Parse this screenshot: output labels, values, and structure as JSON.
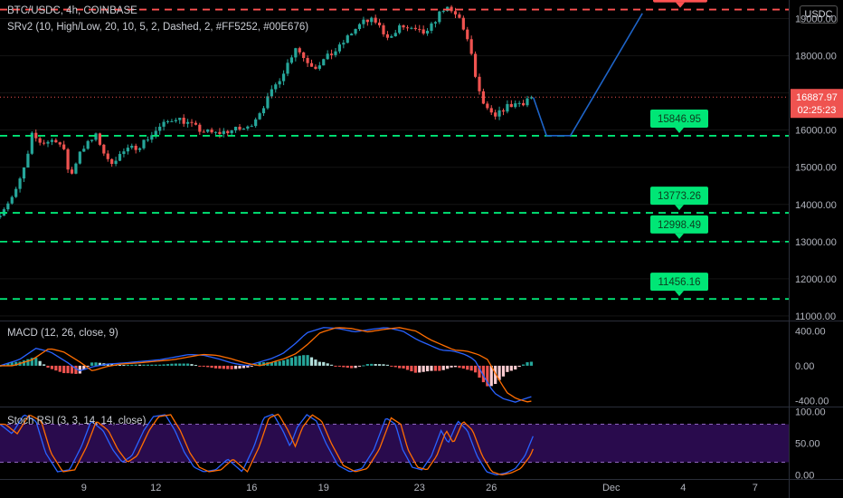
{
  "header": {
    "symbol_line": "BTC/USDC, 4h, COINBASE",
    "indicator_line": "SRv2 (10, High/Low, 20, 10, 5, 2, Dashed, 2, #FF5252, #00E676)",
    "unit_button": "USDC"
  },
  "colors": {
    "up": "#26a69a",
    "down": "#ef5350",
    "support": "#00e676",
    "resistance": "#ff5252",
    "macd": "#2962ff",
    "signal": "#ff6d00",
    "stoch_k": "#2962ff",
    "stoch_d": "#ff6d00",
    "rsi_band": "#4a148c",
    "projection": "#1e64c8"
  },
  "chart_data": {
    "type": "candlestick",
    "price_axis": {
      "ticks": [
        11000,
        12000,
        13000,
        14000,
        15000,
        16000,
        17000,
        18000,
        19000
      ],
      "ylim": [
        10900,
        19500
      ]
    },
    "x_axis": {
      "ticks": [
        "9",
        "12",
        "16",
        "19",
        "23",
        "26",
        "Dec",
        "4",
        "7"
      ],
      "tick_days": [
        9,
        12,
        16,
        19,
        23,
        26,
        31,
        34,
        37
      ]
    },
    "current_price": {
      "value": "16887.97",
      "countdown": "02:25:23"
    },
    "levels": [
      {
        "value": "19242.5",
        "kind": "resistance"
      },
      {
        "value": "15846.95",
        "kind": "support"
      },
      {
        "value": "13773.26",
        "kind": "support"
      },
      {
        "value": "12998.49",
        "kind": "support"
      },
      {
        "value": "11456.16",
        "kind": "support"
      }
    ],
    "price_anchors": [
      [
        5.5,
        13650
      ],
      [
        6.3,
        14300
      ],
      [
        6.8,
        15200
      ],
      [
        7.0,
        15850
      ],
      [
        7.4,
        15650
      ],
      [
        8.0,
        15750
      ],
      [
        8.3,
        15500
      ],
      [
        8.6,
        14700
      ],
      [
        9.0,
        15450
      ],
      [
        9.7,
        15850
      ],
      [
        10.2,
        15100
      ],
      [
        10.8,
        15400
      ],
      [
        11.5,
        15600
      ],
      [
        12.2,
        16000
      ],
      [
        12.6,
        16200
      ],
      [
        13.0,
        16350
      ],
      [
        13.6,
        16150
      ],
      [
        14.0,
        16000
      ],
      [
        14.6,
        15900
      ],
      [
        15.4,
        16000
      ],
      [
        16.0,
        16050
      ],
      [
        16.4,
        16400
      ],
      [
        16.9,
        16900
      ],
      [
        17.2,
        17250
      ],
      [
        17.6,
        17700
      ],
      [
        18.0,
        18250
      ],
      [
        18.4,
        17900
      ],
      [
        18.8,
        17700
      ],
      [
        19.3,
        17950
      ],
      [
        19.8,
        18200
      ],
      [
        20.3,
        18600
      ],
      [
        20.8,
        18900
      ],
      [
        21.3,
        18950
      ],
      [
        21.7,
        18600
      ],
      [
        22.0,
        18500
      ],
      [
        22.4,
        18800
      ],
      [
        23.0,
        18650
      ],
      [
        23.5,
        18600
      ],
      [
        23.9,
        19050
      ],
      [
        24.2,
        19300
      ],
      [
        24.5,
        19150
      ],
      [
        24.8,
        19050
      ],
      [
        25.1,
        18600
      ],
      [
        25.4,
        17800
      ],
      [
        25.6,
        17100
      ],
      [
        25.9,
        16600
      ],
      [
        26.3,
        16300
      ],
      [
        26.7,
        16600
      ],
      [
        27.1,
        16700
      ],
      [
        27.5,
        16750
      ],
      [
        27.7,
        16880
      ]
    ],
    "projection": [
      [
        27.75,
        16880
      ],
      [
        28.3,
        15850
      ],
      [
        29.3,
        15850
      ],
      [
        32.3,
        19140
      ]
    ],
    "macd": {
      "ticks": [
        400,
        0,
        -400
      ],
      "ylim": [
        -460,
        500
      ],
      "anchors": [
        [
          5.5,
          0
        ],
        [
          6.3,
          70
        ],
        [
          7.0,
          200
        ],
        [
          7.6,
          160
        ],
        [
          8.3,
          40
        ],
        [
          8.8,
          -60
        ],
        [
          9.4,
          -10
        ],
        [
          10.0,
          20
        ],
        [
          10.6,
          30
        ],
        [
          11.4,
          50
        ],
        [
          12.2,
          70
        ],
        [
          12.8,
          100
        ],
        [
          13.4,
          130
        ],
        [
          14.0,
          120
        ],
        [
          14.6,
          80
        ],
        [
          15.2,
          30
        ],
        [
          15.8,
          0
        ],
        [
          16.3,
          40
        ],
        [
          16.8,
          80
        ],
        [
          17.3,
          140
        ],
        [
          17.8,
          250
        ],
        [
          18.3,
          380
        ],
        [
          19.0,
          440
        ],
        [
          19.6,
          430
        ],
        [
          20.3,
          390
        ],
        [
          21.0,
          420
        ],
        [
          21.6,
          440
        ],
        [
          22.3,
          400
        ],
        [
          22.9,
          300
        ],
        [
          23.4,
          240
        ],
        [
          23.9,
          180
        ],
        [
          24.4,
          170
        ],
        [
          24.9,
          130
        ],
        [
          25.3,
          70
        ],
        [
          25.7,
          -130
        ],
        [
          26.1,
          -310
        ],
        [
          26.5,
          -380
        ],
        [
          27.0,
          -420
        ],
        [
          27.4,
          -380
        ],
        [
          27.75,
          -350
        ]
      ]
    },
    "stoch_rsi": {
      "ticks": [
        100,
        50,
        0
      ],
      "ylim": [
        -5,
        105
      ],
      "band": [
        20,
        80
      ],
      "anchors": [
        [
          5.5,
          80
        ],
        [
          6.0,
          65
        ],
        [
          6.5,
          95
        ],
        [
          7.0,
          85
        ],
        [
          7.4,
          35
        ],
        [
          7.9,
          5
        ],
        [
          8.4,
          8
        ],
        [
          8.9,
          45
        ],
        [
          9.3,
          85
        ],
        [
          9.8,
          70
        ],
        [
          10.2,
          40
        ],
        [
          10.6,
          20
        ],
        [
          11.0,
          30
        ],
        [
          11.5,
          70
        ],
        [
          11.9,
          92
        ],
        [
          12.4,
          95
        ],
        [
          12.8,
          70
        ],
        [
          13.2,
          35
        ],
        [
          13.6,
          12
        ],
        [
          14.0,
          5
        ],
        [
          14.5,
          8
        ],
        [
          15.0,
          25
        ],
        [
          15.6,
          5
        ],
        [
          16.1,
          45
        ],
        [
          16.5,
          90
        ],
        [
          16.9,
          96
        ],
        [
          17.3,
          70
        ],
        [
          17.6,
          45
        ],
        [
          17.9,
          75
        ],
        [
          18.3,
          95
        ],
        [
          18.7,
          85
        ],
        [
          19.1,
          50
        ],
        [
          19.6,
          15
        ],
        [
          20.1,
          5
        ],
        [
          20.6,
          10
        ],
        [
          21.1,
          40
        ],
        [
          21.6,
          90
        ],
        [
          22.0,
          80
        ],
        [
          22.3,
          40
        ],
        [
          22.7,
          12
        ],
        [
          23.1,
          8
        ],
        [
          23.5,
          30
        ],
        [
          23.9,
          70
        ],
        [
          24.2,
          50
        ],
        [
          24.6,
          85
        ],
        [
          25.0,
          70
        ],
        [
          25.4,
          30
        ],
        [
          25.8,
          5
        ],
        [
          26.2,
          0
        ],
        [
          26.6,
          3
        ],
        [
          27.0,
          10
        ],
        [
          27.4,
          30
        ],
        [
          27.75,
          62
        ]
      ]
    }
  },
  "legends": {
    "macd": "MACD (12, 26, close, 9)",
    "stoch": "Stoch RSI (3, 3, 14, 14, close)"
  }
}
